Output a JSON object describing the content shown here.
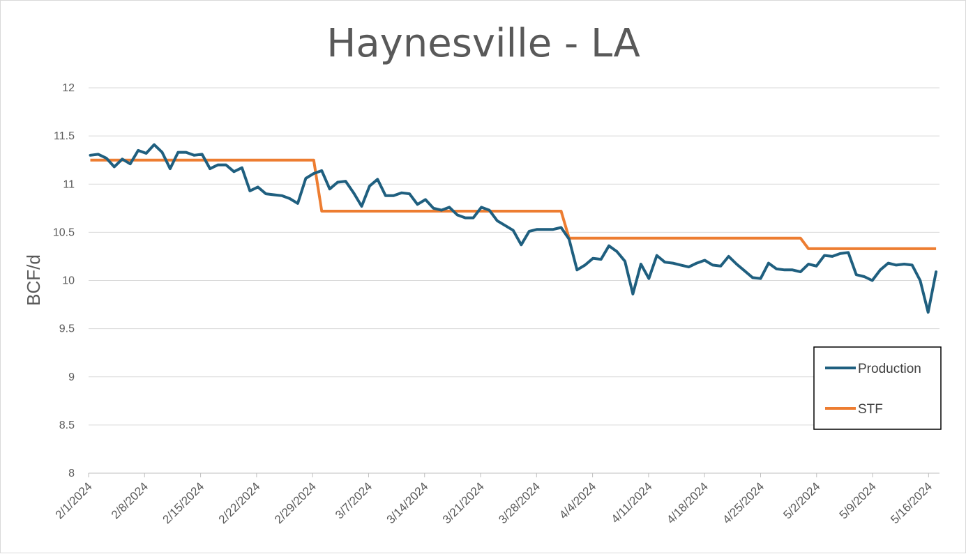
{
  "chart_data": {
    "type": "line",
    "title": "Haynesville - LA",
    "xlabel": "",
    "ylabel": "BCF/d",
    "ylim": [
      8,
      12
    ],
    "yticks": [
      "8",
      "8.5",
      "9",
      "9.5",
      "10",
      "10.5",
      "11",
      "11.5",
      "12"
    ],
    "x_start": "2/1/2024",
    "x_end": "5/19/2024",
    "xticks": [
      "2/1/2024",
      "2/8/2024",
      "2/15/2024",
      "2/22/2024",
      "2/29/2024",
      "3/7/2024",
      "3/14/2024",
      "3/21/2024",
      "3/28/2024",
      "4/4/2024",
      "4/11/2024",
      "4/18/2024",
      "4/25/2024",
      "5/2/2024",
      "5/9/2024",
      "5/16/2024"
    ],
    "grid": true,
    "legend_position": "bottom-right",
    "series": [
      {
        "name": "Production",
        "color": "#1f5f7f",
        "values": [
          11.3,
          11.31,
          11.27,
          11.18,
          11.26,
          11.21,
          11.35,
          11.32,
          11.41,
          11.33,
          11.16,
          11.33,
          11.33,
          11.3,
          11.31,
          11.16,
          11.2,
          11.2,
          11.13,
          11.17,
          10.93,
          10.97,
          10.9,
          10.89,
          10.88,
          10.85,
          10.8,
          11.06,
          11.11,
          11.14,
          10.95,
          11.02,
          11.03,
          10.91,
          10.77,
          10.98,
          11.05,
          10.88,
          10.88,
          10.91,
          10.9,
          10.79,
          10.84,
          10.75,
          10.73,
          10.76,
          10.68,
          10.65,
          10.65,
          10.76,
          10.73,
          10.62,
          10.57,
          10.52,
          10.37,
          10.51,
          10.53,
          10.53,
          10.53,
          10.55,
          10.43,
          10.11,
          10.16,
          10.23,
          10.22,
          10.36,
          10.3,
          10.2,
          9.86,
          10.17,
          10.02,
          10.26,
          10.19,
          10.18,
          10.16,
          10.14,
          10.18,
          10.21,
          10.16,
          10.15,
          10.25,
          10.17,
          10.1,
          10.03,
          10.02,
          10.18,
          10.12,
          10.11,
          10.11,
          10.09,
          10.17,
          10.15,
          10.26,
          10.25,
          10.28,
          10.29,
          10.06,
          10.04,
          10.0,
          10.11,
          10.18,
          10.16,
          10.17,
          10.16,
          10.0,
          9.67,
          10.09
        ]
      },
      {
        "name": "STF",
        "color": "#ed7d31",
        "steps": [
          {
            "from": 0,
            "to": 28,
            "value": 11.25
          },
          {
            "from": 29,
            "to": 59,
            "value": 10.72
          },
          {
            "from": 60,
            "to": 89,
            "value": 10.44
          },
          {
            "from": 90,
            "to": 106,
            "value": 10.33
          }
        ]
      }
    ]
  }
}
